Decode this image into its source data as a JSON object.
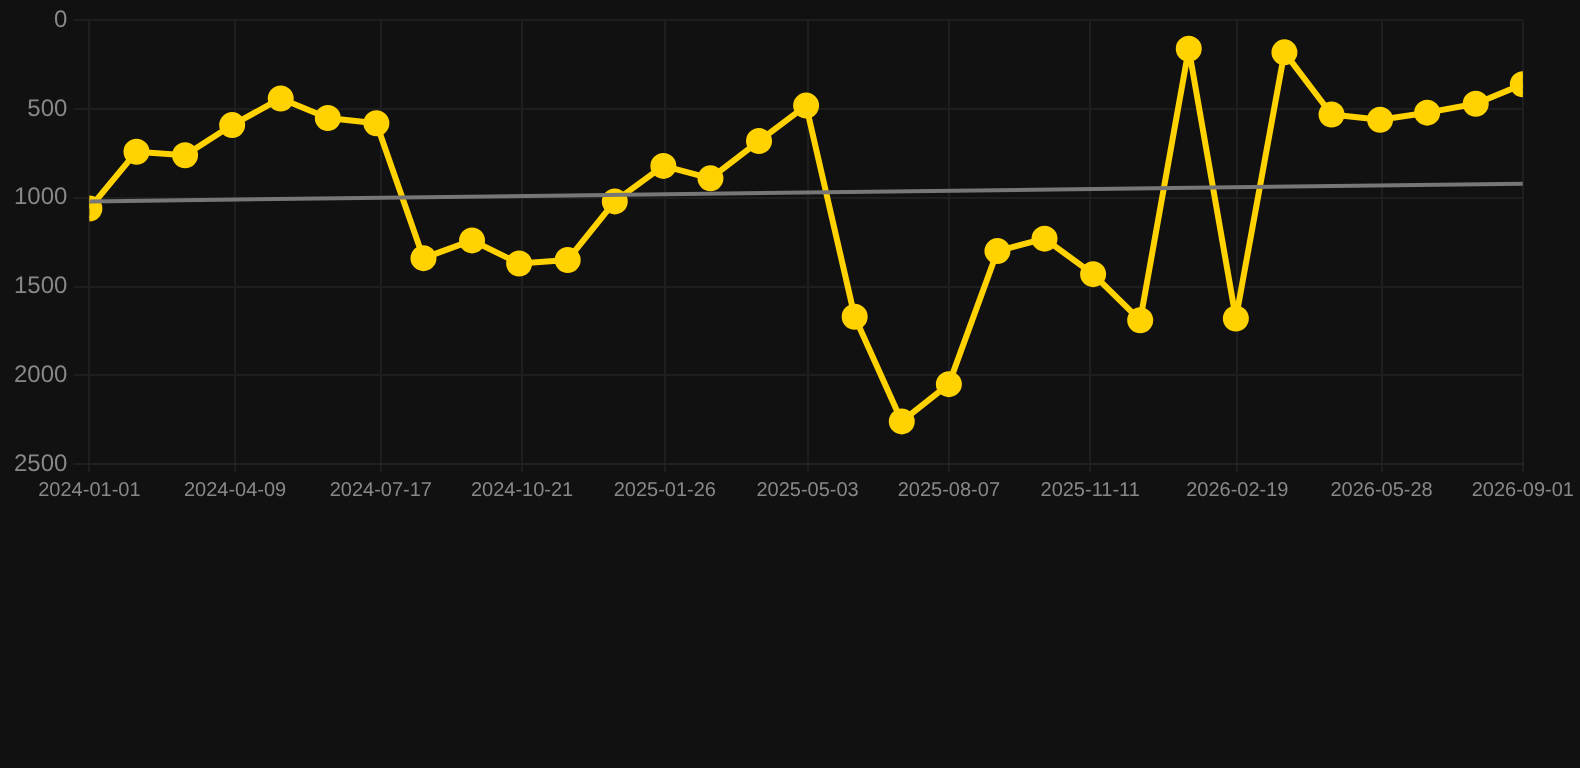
{
  "chart_data": {
    "type": "line",
    "marker": "circle",
    "grid": true,
    "x": [
      "2024-01-01",
      "2024-02-02",
      "2024-03-06",
      "2024-04-07",
      "2024-05-10",
      "2024-06-11",
      "2024-07-14",
      "2024-08-15",
      "2024-09-17",
      "2024-10-19",
      "2024-11-21",
      "2024-12-23",
      "2025-01-25",
      "2025-02-26",
      "2025-03-31",
      "2025-05-02",
      "2025-06-04",
      "2025-07-06",
      "2025-08-07",
      "2025-09-09",
      "2025-10-11",
      "2025-11-13",
      "2025-12-15",
      "2026-01-17",
      "2026-02-18",
      "2026-03-23",
      "2026-04-24",
      "2026-05-27",
      "2026-06-28",
      "2026-07-31",
      "2026-09-01"
    ],
    "series": [
      {
        "color": "#ffd200",
        "values": [
          1060,
          740,
          760,
          590,
          440,
          550,
          580,
          1340,
          1240,
          1370,
          1350,
          1020,
          820,
          890,
          680,
          480,
          1670,
          2260,
          2050,
          1300,
          1230,
          1430,
          1690,
          160,
          1680,
          180,
          530,
          560,
          520,
          470,
          360
        ]
      },
      {
        "type": "line",
        "marker": "none",
        "color": "#777777",
        "x": [
          "2024-01-01",
          "2026-09-01"
        ],
        "values": [
          1020,
          920
        ]
      }
    ],
    "xlim": [
      "2024-01-01",
      "2026-09-01"
    ],
    "xticks": [
      "2024-01-01",
      "2024-04-09",
      "2024-07-17",
      "2024-10-21",
      "2025-01-26",
      "2025-05-03",
      "2025-08-07",
      "2025-11-11",
      "2026-02-19",
      "2026-05-28",
      "2026-09-01"
    ],
    "ylim": [
      2500,
      0
    ],
    "yticks": [
      0,
      500,
      1000,
      1500,
      2000,
      2500
    ]
  }
}
